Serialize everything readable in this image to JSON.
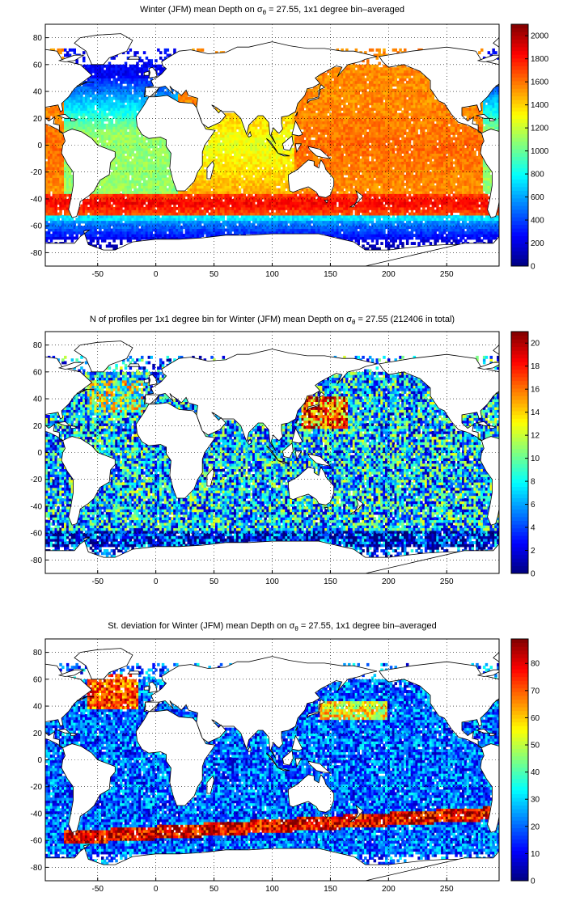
{
  "chart_data": [
    {
      "type": "heatmap",
      "title_pre": "Winter (JFM) mean Depth on σ",
      "title_sub": "θ",
      "title_post": " = 27.55, 1x1 degree bin–averaged",
      "xticks": [
        -50,
        0,
        50,
        100,
        150,
        200,
        250
      ],
      "yticks": [
        80,
        60,
        40,
        20,
        0,
        -20,
        -40,
        -60,
        -80
      ],
      "xlim": [
        -95,
        295
      ],
      "ylim": [
        -90,
        90
      ],
      "grid": true,
      "colormap": "jet",
      "clim": [
        0,
        2100
      ],
      "colorbar_ticks": [
        2000,
        1800,
        1600,
        1400,
        1200,
        1000,
        800,
        600,
        400,
        200,
        0
      ],
      "field": "mean_depth"
    },
    {
      "type": "heatmap",
      "title_pre": "N of profiles per 1x1 degree bin for Winter (JFM) mean Depth on σ",
      "title_sub": "θ",
      "title_post": " = 27.55 (212406 in total)",
      "xticks": [
        -50,
        0,
        50,
        100,
        150,
        200,
        250
      ],
      "yticks": [
        80,
        60,
        40,
        20,
        0,
        -20,
        -40,
        -60,
        -80
      ],
      "xlim": [
        -95,
        295
      ],
      "ylim": [
        -90,
        90
      ],
      "grid": true,
      "colormap": "jet",
      "clim": [
        0,
        21
      ],
      "colorbar_ticks": [
        20,
        18,
        16,
        14,
        12,
        10,
        8,
        6,
        4,
        2,
        0
      ],
      "field": "profile_count"
    },
    {
      "type": "heatmap",
      "title_pre": "St. deviation for Winter (JFM) mean Depth on σ",
      "title_sub": "θ",
      "title_post": " = 27.55, 1x1 degree bin–averaged",
      "xticks": [
        -50,
        0,
        50,
        100,
        150,
        200,
        250
      ],
      "yticks": [
        80,
        60,
        40,
        20,
        0,
        -20,
        -40,
        -60,
        -80
      ],
      "xlim": [
        -95,
        295
      ],
      "ylim": [
        -90,
        90
      ],
      "grid": true,
      "colormap": "jet",
      "clim": [
        0,
        89
      ],
      "colorbar_ticks": [
        80,
        70,
        60,
        50,
        40,
        30,
        20,
        10,
        0
      ],
      "field": "std_depth"
    }
  ],
  "land_polygons": [
    [
      [
        -168,
        66
      ],
      [
        -140,
        70
      ],
      [
        -110,
        73
      ],
      [
        -85,
        70
      ],
      [
        -80,
        63
      ],
      [
        -65,
        60
      ],
      [
        -55,
        52
      ],
      [
        -66,
        45
      ],
      [
        -70,
        42
      ],
      [
        -75,
        36
      ],
      [
        -81,
        31
      ],
      [
        -80,
        26
      ],
      [
        -82,
        25
      ],
      [
        -84,
        30
      ],
      [
        -90,
        29
      ],
      [
        -97,
        28
      ],
      [
        -97,
        22
      ],
      [
        -92,
        18
      ],
      [
        -87,
        21
      ],
      [
        -88,
        16
      ],
      [
        -83,
        15
      ],
      [
        -83,
        10
      ],
      [
        -78,
        8
      ],
      [
        -85,
        12
      ],
      [
        -92,
        15
      ],
      [
        -100,
        17
      ],
      [
        -106,
        23
      ],
      [
        -112,
        31
      ],
      [
        -117,
        33
      ],
      [
        -124,
        42
      ],
      [
        -124,
        48
      ],
      [
        -133,
        55
      ],
      [
        -147,
        60
      ],
      [
        -160,
        58
      ],
      [
        -165,
        62
      ]
    ],
    [
      [
        -80,
        9
      ],
      [
        -75,
        11
      ],
      [
        -72,
        12
      ],
      [
        -64,
        10
      ],
      [
        -55,
        5
      ],
      [
        -50,
        0
      ],
      [
        -44,
        -2
      ],
      [
        -35,
        -5
      ],
      [
        -35,
        -9
      ],
      [
        -39,
        -13
      ],
      [
        -40,
        -22
      ],
      [
        -48,
        -26
      ],
      [
        -53,
        -34
      ],
      [
        -58,
        -38
      ],
      [
        -65,
        -42
      ],
      [
        -66,
        -47
      ],
      [
        -68,
        -53
      ],
      [
        -72,
        -54
      ],
      [
        -75,
        -48
      ],
      [
        -73,
        -40
      ],
      [
        -71,
        -30
      ],
      [
        -71,
        -20
      ],
      [
        -76,
        -14
      ],
      [
        -81,
        -6
      ],
      [
        -80,
        0
      ],
      [
        -78,
        3
      ]
    ],
    [
      [
        -17,
        21
      ],
      [
        -16,
        14
      ],
      [
        -12,
        8
      ],
      [
        -6,
        5
      ],
      [
        4,
        6
      ],
      [
        9,
        4
      ],
      [
        9,
        -1
      ],
      [
        13,
        -6
      ],
      [
        12,
        -17
      ],
      [
        15,
        -27
      ],
      [
        18,
        -34
      ],
      [
        25,
        -34
      ],
      [
        33,
        -27
      ],
      [
        36,
        -20
      ],
      [
        40,
        -15
      ],
      [
        40,
        -5
      ],
      [
        42,
        0
      ],
      [
        51,
        11
      ],
      [
        43,
        12
      ],
      [
        39,
        18
      ],
      [
        35,
        28
      ],
      [
        32,
        31
      ],
      [
        20,
        32
      ],
      [
        10,
        37
      ],
      [
        0,
        36
      ],
      [
        -6,
        36
      ],
      [
        -10,
        30
      ]
    ],
    [
      [
        -10,
        36
      ],
      [
        -9,
        43
      ],
      [
        -2,
        44
      ],
      [
        -4,
        48
      ],
      [
        2,
        51
      ],
      [
        5,
        53
      ],
      [
        9,
        57
      ],
      [
        6,
        59
      ],
      [
        5,
        62
      ],
      [
        12,
        66
      ],
      [
        20,
        70
      ],
      [
        30,
        71
      ],
      [
        45,
        68
      ],
      [
        60,
        69
      ],
      [
        70,
        73
      ],
      [
        80,
        73
      ],
      [
        100,
        77
      ],
      [
        115,
        74
      ],
      [
        130,
        72
      ],
      [
        145,
        72
      ],
      [
        160,
        70
      ],
      [
        170,
        70
      ],
      [
        180,
        68
      ],
      [
        190,
        66
      ],
      [
        180,
        64
      ],
      [
        175,
        62
      ],
      [
        165,
        60
      ],
      [
        160,
        55
      ],
      [
        156,
        51
      ],
      [
        160,
        58
      ],
      [
        155,
        59
      ],
      [
        142,
        53
      ],
      [
        137,
        50
      ],
      [
        141,
        46
      ],
      [
        135,
        43
      ],
      [
        130,
        42
      ],
      [
        128,
        37
      ],
      [
        126,
        35
      ],
      [
        122,
        31
      ],
      [
        120,
        25
      ],
      [
        114,
        22
      ],
      [
        108,
        21
      ],
      [
        108,
        16
      ],
      [
        109,
        12
      ],
      [
        106,
        9
      ],
      [
        104,
        10
      ],
      [
        101,
        13
      ],
      [
        99,
        8
      ],
      [
        103,
        1
      ],
      [
        98,
        8
      ],
      [
        97,
        17
      ],
      [
        92,
        22
      ],
      [
        88,
        22
      ],
      [
        80,
        15
      ],
      [
        78,
        8
      ],
      [
        73,
        20
      ],
      [
        67,
        25
      ],
      [
        57,
        25
      ],
      [
        52,
        28
      ],
      [
        48,
        30
      ],
      [
        54,
        24
      ],
      [
        56,
        26
      ],
      [
        60,
        22
      ],
      [
        55,
        17
      ],
      [
        45,
        13
      ],
      [
        40,
        16
      ],
      [
        35,
        28
      ],
      [
        36,
        35
      ],
      [
        28,
        37
      ],
      [
        26,
        41
      ],
      [
        22,
        37
      ],
      [
        18,
        40
      ],
      [
        14,
        42
      ],
      [
        12,
        44
      ],
      [
        15,
        38
      ],
      [
        8,
        44
      ],
      [
        3,
        43
      ],
      [
        -1,
        37
      ],
      [
        -6,
        37
      ]
    ],
    [
      [
        114,
        -22
      ],
      [
        114,
        -26
      ],
      [
        115,
        -34
      ],
      [
        118,
        -35
      ],
      [
        124,
        -33
      ],
      [
        131,
        -31
      ],
      [
        138,
        -35
      ],
      [
        140,
        -38
      ],
      [
        146,
        -39
      ],
      [
        150,
        -37
      ],
      [
        153,
        -30
      ],
      [
        153,
        -25
      ],
      [
        150,
        -22
      ],
      [
        146,
        -18
      ],
      [
        145,
        -15
      ],
      [
        142,
        -11
      ],
      [
        141,
        -13
      ],
      [
        140,
        -17
      ],
      [
        136,
        -15
      ],
      [
        136,
        -12
      ],
      [
        131,
        -11
      ],
      [
        127,
        -14
      ],
      [
        122,
        -18
      ]
    ],
    [
      [
        -180,
        -90
      ],
      [
        180,
        -90
      ],
      [
        300,
        -90
      ],
      [
        300,
        -78
      ],
      [
        290,
        -75
      ],
      [
        280,
        -73
      ],
      [
        270,
        -74
      ],
      [
        250,
        -74
      ],
      [
        230,
        -75
      ],
      [
        200,
        -78
      ],
      [
        180,
        -78
      ],
      [
        170,
        -72
      ],
      [
        160,
        -70
      ],
      [
        150,
        -68
      ],
      [
        140,
        -66
      ],
      [
        120,
        -66
      ],
      [
        100,
        -66
      ],
      [
        80,
        -67
      ],
      [
        60,
        -67
      ],
      [
        40,
        -69
      ],
      [
        20,
        -70
      ],
      [
        0,
        -70
      ],
      [
        -20,
        -72
      ],
      [
        -35,
        -78
      ],
      [
        -45,
        -78
      ],
      [
        -58,
        -74
      ],
      [
        -62,
        -64
      ],
      [
        -57,
        -63
      ],
      [
        -65,
        -68
      ],
      [
        -70,
        -73
      ],
      [
        -80,
        -73
      ],
      [
        -95,
        -73
      ],
      [
        -100,
        -74
      ]
    ],
    [
      [
        -55,
        60
      ],
      [
        -45,
        60
      ],
      [
        -40,
        65
      ],
      [
        -25,
        70
      ],
      [
        -20,
        78
      ],
      [
        -30,
        83
      ],
      [
        -50,
        82
      ],
      [
        -65,
        80
      ],
      [
        -70,
        76
      ],
      [
        -60,
        70
      ]
    ],
    [
      [
        44,
        -25
      ],
      [
        47,
        -25
      ],
      [
        50,
        -15
      ],
      [
        49,
        -12
      ],
      [
        44,
        -17
      ]
    ],
    [
      [
        -6,
        50
      ],
      [
        1,
        51
      ],
      [
        0,
        55
      ],
      [
        -3,
        58
      ],
      [
        -6,
        57
      ],
      [
        -5,
        54
      ]
    ],
    [
      [
        -10,
        52
      ],
      [
        -6,
        52
      ],
      [
        -6,
        55
      ],
      [
        -10,
        54
      ]
    ],
    [
      [
        -24,
        64
      ],
      [
        -14,
        64
      ],
      [
        -15,
        66
      ],
      [
        -22,
        66
      ]
    ],
    [
      [
        95,
        5
      ],
      [
        105,
        -6
      ],
      [
        103,
        -3
      ],
      [
        98,
        3
      ]
    ],
    [
      [
        105,
        -6
      ],
      [
        115,
        -8
      ],
      [
        110,
        -8
      ]
    ],
    [
      [
        109,
        1
      ],
      [
        117,
        7
      ],
      [
        118,
        1
      ],
      [
        115,
        -4
      ],
      [
        110,
        -3
      ]
    ],
    [
      [
        120,
        1
      ],
      [
        125,
        1
      ],
      [
        121,
        -5
      ]
    ],
    [
      [
        131,
        -1
      ],
      [
        141,
        -3
      ],
      [
        150,
        -10
      ],
      [
        143,
        -9
      ],
      [
        138,
        -8
      ],
      [
        132,
        -3
      ]
    ],
    [
      [
        130,
        31
      ],
      [
        131,
        34
      ],
      [
        136,
        35
      ],
      [
        140,
        36
      ],
      [
        141,
        40
      ],
      [
        141,
        43
      ],
      [
        142,
        45
      ],
      [
        145,
        43
      ],
      [
        140,
        41
      ],
      [
        140,
        35
      ],
      [
        132,
        33
      ]
    ],
    [
      [
        120,
        22
      ],
      [
        122,
        25
      ],
      [
        121,
        22
      ]
    ],
    [
      [
        117,
        8
      ],
      [
        120,
        18
      ],
      [
        122,
        15
      ],
      [
        126,
        8
      ],
      [
        123,
        7
      ]
    ],
    [
      [
        172,
        -34
      ],
      [
        178,
        -38
      ],
      [
        174,
        -42
      ],
      [
        167,
        -46
      ],
      [
        170,
        -46
      ],
      [
        174,
        -39
      ]
    ],
    [
      [
        145,
        -41
      ],
      [
        148,
        -41
      ],
      [
        147,
        -43
      ]
    ],
    [
      [
        -85,
        22
      ],
      [
        -78,
        23
      ],
      [
        -74,
        20
      ],
      [
        -78,
        20
      ],
      [
        -84,
        22
      ]
    ],
    [
      [
        -73,
        20
      ],
      [
        -68,
        19
      ],
      [
        -70,
        18
      ],
      [
        -73,
        18
      ]
    ],
    [
      [
        -83,
        63
      ],
      [
        -70,
        67
      ],
      [
        -62,
        67
      ],
      [
        -70,
        63
      ],
      [
        -78,
        62
      ]
    ],
    [
      [
        -68,
        44
      ],
      [
        -60,
        47
      ],
      [
        -53,
        47
      ],
      [
        -59,
        47
      ],
      [
        -66,
        44
      ]
    ],
    [
      [
        79,
        7
      ],
      [
        81,
        10
      ],
      [
        82,
        7
      ],
      [
        80,
        6
      ]
    ],
    [
      [
        -5,
        36
      ],
      [
        0,
        40
      ],
      [
        3,
        43
      ],
      [
        -9,
        43
      ],
      [
        -9,
        37
      ]
    ]
  ]
}
